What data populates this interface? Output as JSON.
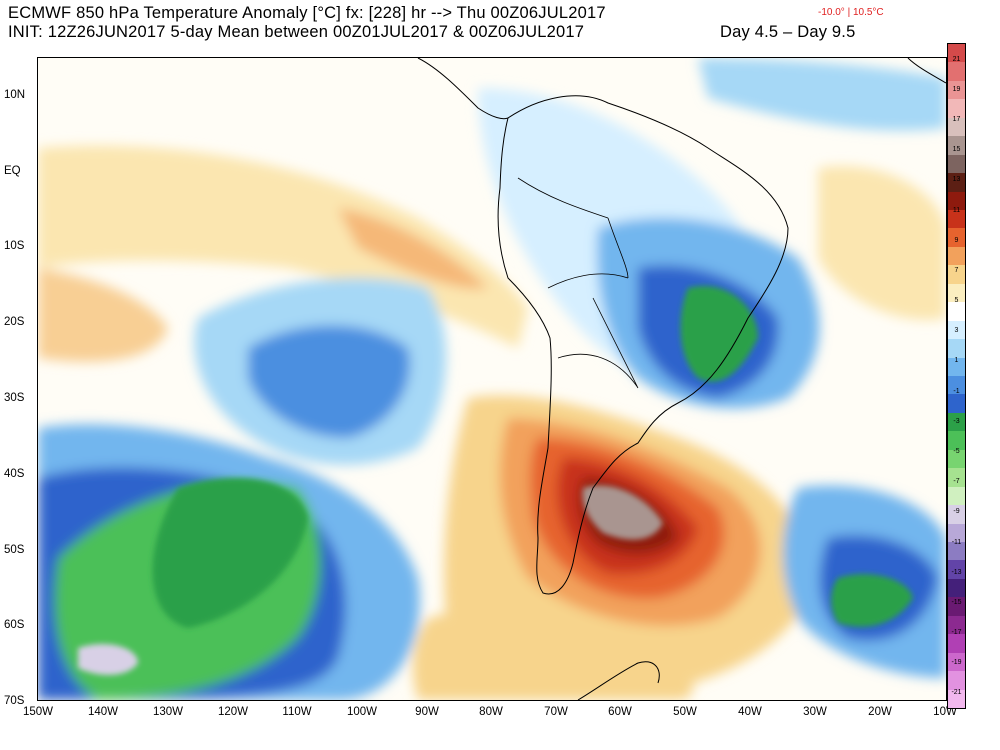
{
  "header": {
    "title_line1": "ECMWF 850 hPa Temperature Anomaly [°C] fx: [228] hr --> Thu 00Z06JUL2017",
    "minmax": "-10.0° | 10.5°C",
    "title_line2": "INIT: 12Z26JUN2017 5-day Mean between 00Z01JUL2017 & 00Z06JUL2017",
    "day_range": "Day 4.5 – Day 9.5"
  },
  "map": {
    "region": "South America and surrounding Pacific / Atlantic Oceans",
    "lat_labels": [
      "10N",
      "EQ",
      "10S",
      "20S",
      "30S",
      "40S",
      "50S",
      "60S",
      "70S"
    ],
    "lon_labels": [
      "150W",
      "140W",
      "130W",
      "120W",
      "110W",
      "100W",
      "90W",
      "80W",
      "70W",
      "60W",
      "50W",
      "40W",
      "30W",
      "20W",
      "10W"
    ]
  },
  "colorbar": {
    "levels": [
      "21",
      "19",
      "17",
      "15",
      "13",
      "11",
      "9",
      "7",
      "5",
      "3",
      "1",
      "-1",
      "-3",
      "-5",
      "-7",
      "-9",
      "-11",
      "-13",
      "-15",
      "-17",
      "-19",
      "-21"
    ],
    "colors": [
      "#d44a4a",
      "#e27070",
      "#ea9494",
      "#f2b8b8",
      "#d8c0bc",
      "#a99590",
      "#7d6460",
      "#5c1f14",
      "#8e1a0e",
      "#c8321a",
      "#e6632e",
      "#f2a15c",
      "#f7d48c",
      "#fbeec0",
      "#ffffff",
      "#d6efff",
      "#a6d8f6",
      "#72b6ee",
      "#4c8fe0",
      "#2e64cc",
      "#2ca048",
      "#4cc058",
      "#78d470",
      "#a6e290",
      "#d0f0c0",
      "#d8d0e6",
      "#b8a8d8",
      "#8c7cc2",
      "#6244a8",
      "#44207a",
      "#6a1a72",
      "#8c2a90",
      "#b040b4",
      "#cc68cc",
      "#e292e0",
      "#f2b8ee"
    ]
  }
}
